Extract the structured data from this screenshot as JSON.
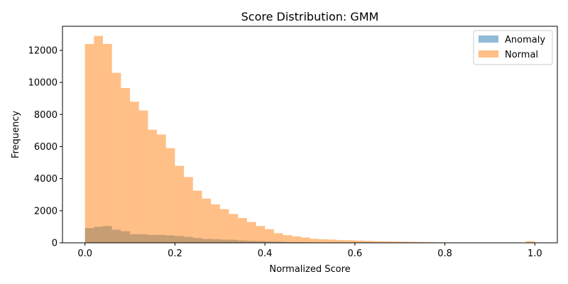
{
  "chart_data": {
    "type": "bar",
    "title": "Score Distribution: GMM",
    "xlabel": "Normalized Score",
    "ylabel": "Frequency",
    "xlim": [
      -0.05,
      1.05
    ],
    "ylim": [
      0,
      13500
    ],
    "xticks": [
      0.0,
      0.2,
      0.4,
      0.6,
      0.8,
      1.0
    ],
    "xtick_labels": [
      "0.0",
      "0.2",
      "0.4",
      "0.6",
      "0.8",
      "1.0"
    ],
    "yticks": [
      0,
      2000,
      4000,
      6000,
      8000,
      10000,
      12000
    ],
    "ytick_labels": [
      "0",
      "2000",
      "4000",
      "6000",
      "8000",
      "10000",
      "12000"
    ],
    "bin_start": 0.0,
    "bin_width": 0.02,
    "legend_position": "top-right",
    "series": [
      {
        "name": "Anomaly",
        "color": "#1f77b4",
        "opacity": 0.5,
        "values": [
          920,
          1000,
          1050,
          820,
          720,
          540,
          530,
          490,
          490,
          460,
          420,
          370,
          300,
          240,
          220,
          200,
          190,
          150,
          120,
          110,
          80,
          70,
          50,
          40,
          30,
          25,
          20,
          15,
          12,
          10,
          10,
          8,
          8,
          6,
          6,
          5,
          5,
          4,
          4,
          3,
          3,
          3,
          3,
          2,
          2,
          2,
          2,
          2,
          2,
          2
        ]
      },
      {
        "name": "Normal",
        "color": "#ff7f0e",
        "opacity": 0.5,
        "values": [
          12400,
          12900,
          12400,
          10600,
          9650,
          8800,
          8250,
          7050,
          6750,
          5900,
          4800,
          4100,
          3250,
          2750,
          2400,
          2100,
          1800,
          1550,
          1300,
          1050,
          850,
          600,
          480,
          400,
          330,
          250,
          220,
          200,
          170,
          160,
          140,
          120,
          100,
          90,
          80,
          70,
          60,
          50,
          40,
          30,
          25,
          20,
          20,
          15,
          15,
          15,
          10,
          10,
          10,
          100
        ]
      }
    ]
  }
}
